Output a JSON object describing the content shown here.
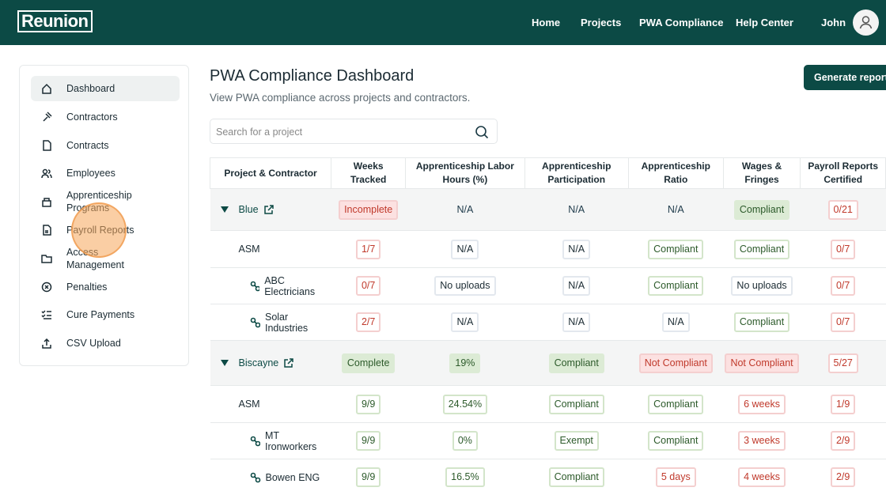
{
  "header": {
    "logo": "Reunion",
    "nav": [
      "Home",
      "Projects",
      "PWA Compliance",
      "Help Center"
    ],
    "user": "John"
  },
  "sidebar": [
    "Dashboard",
    "Contractors",
    "Contracts",
    "Employees",
    "Apprenticeship Programs",
    "Payroll Reports",
    "Access Management",
    "Penalties",
    "Cure Payments",
    "CSV Upload"
  ],
  "main": {
    "title": "PWA Compliance Dashboard",
    "subtitle": "View PWA compliance across projects and contractors.",
    "search_placeholder": "Search for a project",
    "button": "Generate report"
  },
  "table": {
    "headers": [
      "Project & Contractor",
      "Weeks Tracked",
      "Apprenticeship Labor Hours (%)",
      "Apprenticeship Participation",
      "Apprenticeship Ratio",
      "Wages & Fringes",
      "Payroll Reports Certified"
    ],
    "rows": [
      {
        "name": "Blue",
        "level": 0,
        "cells": [
          {
            "text": "Incomplete",
            "tone": "red",
            "filled": true
          },
          {
            "text": "N/A",
            "tone": "none"
          },
          {
            "text": "N/A",
            "tone": "none"
          },
          {
            "text": "N/A",
            "tone": "none"
          },
          {
            "text": "Compliant",
            "tone": "green",
            "filled": true
          },
          {
            "text": "0/21",
            "tone": "red"
          }
        ]
      },
      {
        "name": "ASM",
        "level": 1,
        "cells": [
          {
            "text": "1/7",
            "tone": "red"
          },
          {
            "text": "N/A",
            "tone": "gray"
          },
          {
            "text": "N/A",
            "tone": "gray"
          },
          {
            "text": "Compliant",
            "tone": "green"
          },
          {
            "text": "Compliant",
            "tone": "green"
          },
          {
            "text": "0/7",
            "tone": "red"
          }
        ]
      },
      {
        "name": "ABC Electricians",
        "level": 2,
        "cells": [
          {
            "text": "0/7",
            "tone": "red"
          },
          {
            "text": "No uploads",
            "tone": "gray"
          },
          {
            "text": "N/A",
            "tone": "gray"
          },
          {
            "text": "Compliant",
            "tone": "green"
          },
          {
            "text": "No uploads",
            "tone": "gray"
          },
          {
            "text": "0/7",
            "tone": "red"
          }
        ]
      },
      {
        "name": "Solar Industries",
        "level": 2,
        "cells": [
          {
            "text": "2/7",
            "tone": "red"
          },
          {
            "text": "N/A",
            "tone": "gray"
          },
          {
            "text": "N/A",
            "tone": "gray"
          },
          {
            "text": "N/A",
            "tone": "gray"
          },
          {
            "text": "Compliant",
            "tone": "green"
          },
          {
            "text": "0/7",
            "tone": "red"
          }
        ]
      },
      {
        "name": "Biscayne",
        "level": 0,
        "cells": [
          {
            "text": "Complete",
            "tone": "green",
            "filled": true
          },
          {
            "text": "19%",
            "tone": "green",
            "filled": true
          },
          {
            "text": "Compliant",
            "tone": "green",
            "filled": true
          },
          {
            "text": "Not Compliant",
            "tone": "red",
            "filled": true
          },
          {
            "text": "Not Compliant",
            "tone": "red",
            "filled": true
          },
          {
            "text": "5/27",
            "tone": "red"
          }
        ]
      },
      {
        "name": "ASM",
        "level": 1,
        "cells": [
          {
            "text": "9/9",
            "tone": "green"
          },
          {
            "text": "24.54%",
            "tone": "green"
          },
          {
            "text": "Compliant",
            "tone": "green"
          },
          {
            "text": "Compliant",
            "tone": "green"
          },
          {
            "text": "6 weeks",
            "tone": "red"
          },
          {
            "text": "1/9",
            "tone": "red"
          }
        ]
      },
      {
        "name": "MT Ironworkers",
        "level": 2,
        "cells": [
          {
            "text": "9/9",
            "tone": "green"
          },
          {
            "text": "0%",
            "tone": "green"
          },
          {
            "text": "Exempt",
            "tone": "green"
          },
          {
            "text": "Compliant",
            "tone": "green"
          },
          {
            "text": "3 weeks",
            "tone": "red"
          },
          {
            "text": "2/9",
            "tone": "red"
          }
        ]
      },
      {
        "name": "Bowen ENG",
        "level": 2,
        "cells": [
          {
            "text": "9/9",
            "tone": "green"
          },
          {
            "text": "16.5%",
            "tone": "green"
          },
          {
            "text": "Compliant",
            "tone": "green"
          },
          {
            "text": "5 days",
            "tone": "red"
          },
          {
            "text": "4 weeks",
            "tone": "red"
          },
          {
            "text": "2/9",
            "tone": "red"
          }
        ]
      }
    ]
  }
}
